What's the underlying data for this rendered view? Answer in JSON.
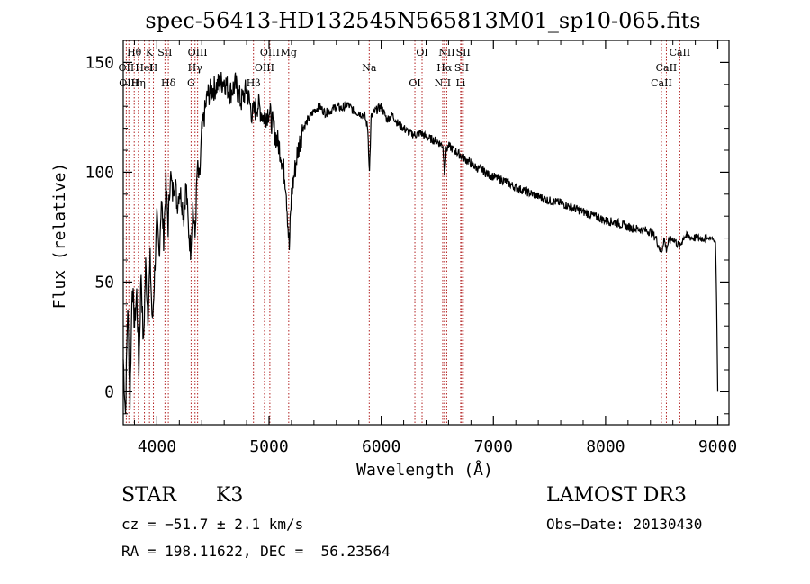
{
  "chart_data": {
    "type": "line",
    "title": "spec-56413-HD132545N565813M01_sp10-065.fits",
    "xlabel": "Wavelength (Å)",
    "ylabel": "Flux (relative)",
    "xlim": [
      3700,
      9100
    ],
    "ylim": [
      -15,
      160
    ],
    "x_ticks": [
      4000,
      5000,
      6000,
      7000,
      8000,
      9000
    ],
    "y_ticks": [
      0,
      50,
      100,
      150
    ],
    "grid": false,
    "series": [
      {
        "name": "flux",
        "x": [
          3700,
          3720,
          3740,
          3760,
          3780,
          3800,
          3820,
          3840,
          3860,
          3880,
          3900,
          3920,
          3940,
          3960,
          3980,
          4000,
          4020,
          4040,
          4060,
          4080,
          4100,
          4120,
          4140,
          4160,
          4180,
          4200,
          4220,
          4240,
          4260,
          4280,
          4300,
          4320,
          4340,
          4360,
          4380,
          4400,
          4450,
          4500,
          4550,
          4600,
          4650,
          4700,
          4750,
          4800,
          4850,
          4900,
          4950,
          5000,
          5050,
          5100,
          5150,
          5180,
          5200,
          5250,
          5300,
          5350,
          5400,
          5450,
          5500,
          5550,
          5600,
          5650,
          5700,
          5750,
          5800,
          5850,
          5880,
          5895,
          5910,
          5950,
          6000,
          6050,
          6100,
          6150,
          6200,
          6250,
          6300,
          6350,
          6400,
          6450,
          6500,
          6550,
          6563,
          6580,
          6600,
          6650,
          6700,
          6750,
          6800,
          6850,
          6900,
          6950,
          7000,
          7100,
          7200,
          7300,
          7400,
          7500,
          7600,
          7700,
          7800,
          7900,
          8000,
          8100,
          8200,
          8300,
          8400,
          8450,
          8498,
          8520,
          8542,
          8560,
          8600,
          8662,
          8700,
          8800,
          8900,
          8950,
          8980,
          8990,
          9000
        ],
        "values": [
          15,
          -10,
          40,
          -5,
          50,
          30,
          45,
          10,
          55,
          20,
          58,
          35,
          60,
          30,
          55,
          78,
          62,
          88,
          70,
          95,
          75,
          100,
          90,
          98,
          85,
          92,
          88,
          80,
          95,
          75,
          65,
          85,
          70,
          102,
          95,
          118,
          135,
          138,
          140,
          142,
          136,
          140,
          132,
          138,
          126,
          131,
          125,
          128,
          118,
          110,
          95,
          65,
          90,
          108,
          120,
          124,
          128,
          130,
          127,
          128,
          130,
          129,
          131,
          128,
          127,
          126,
          120,
          100,
          125,
          128,
          130,
          124,
          126,
          122,
          120,
          118,
          117,
          118,
          116,
          115,
          114,
          112,
          100,
          110,
          112,
          110,
          108,
          106,
          104,
          102,
          101,
          99,
          98,
          96,
          93,
          91,
          89,
          87,
          86,
          84,
          82,
          80,
          78,
          77,
          75,
          74,
          73,
          70,
          63,
          70,
          65,
          68,
          70,
          66,
          71,
          70,
          70,
          70,
          68,
          40,
          0
        ]
      }
    ],
    "lines": [
      {
        "label": "Hθ",
        "x": 3798
      },
      {
        "label": "OII",
        "x": 3727
      },
      {
        "label": "OIII",
        "x": 3750
      },
      {
        "label": "K",
        "x": 3934
      },
      {
        "label": "HeI",
        "x": 3889
      },
      {
        "label": "Hη",
        "x": 3835
      },
      {
        "label": "SII",
        "x": 4072
      },
      {
        "label": "H",
        "x": 3969
      },
      {
        "label": "Hδ",
        "x": 4102
      },
      {
        "label": "OIII",
        "x": 4363
      },
      {
        "label": "Hγ",
        "x": 4340
      },
      {
        "label": "G",
        "x": 4305
      },
      {
        "label": "OIII",
        "x": 5007
      },
      {
        "label": "OIII",
        "x": 4959
      },
      {
        "label": "Hβ",
        "x": 4861
      },
      {
        "label": "Mg",
        "x": 5175
      },
      {
        "label": "Na",
        "x": 5893
      },
      {
        "label": "OI",
        "x": 6300
      },
      {
        "label": "OI",
        "x": 6364
      },
      {
        "label": "Hα",
        "x": 6563
      },
      {
        "label": "NII",
        "x": 6548
      },
      {
        "label": "NII",
        "x": 6584
      },
      {
        "label": "SII",
        "x": 6717
      },
      {
        "label": "Li",
        "x": 6708
      },
      {
        "label": "SII",
        "x": 6731
      },
      {
        "label": "CaII",
        "x": 8542
      },
      {
        "label": "CaII",
        "x": 8498
      },
      {
        "label": "CaII",
        "x": 8662
      }
    ]
  },
  "info": {
    "object_class": "STAR",
    "subclass": "K3",
    "survey": "LAMOST DR3",
    "redshift": "cz = −51.7 ± 2.1 km/s",
    "obs_date": "Obs−Date: 20130430",
    "coords": "RA = 198.11622, DEC =  56.23564"
  },
  "colors": {
    "axis": "#000000",
    "spectrum": "#000000",
    "marker": "#b22222"
  }
}
